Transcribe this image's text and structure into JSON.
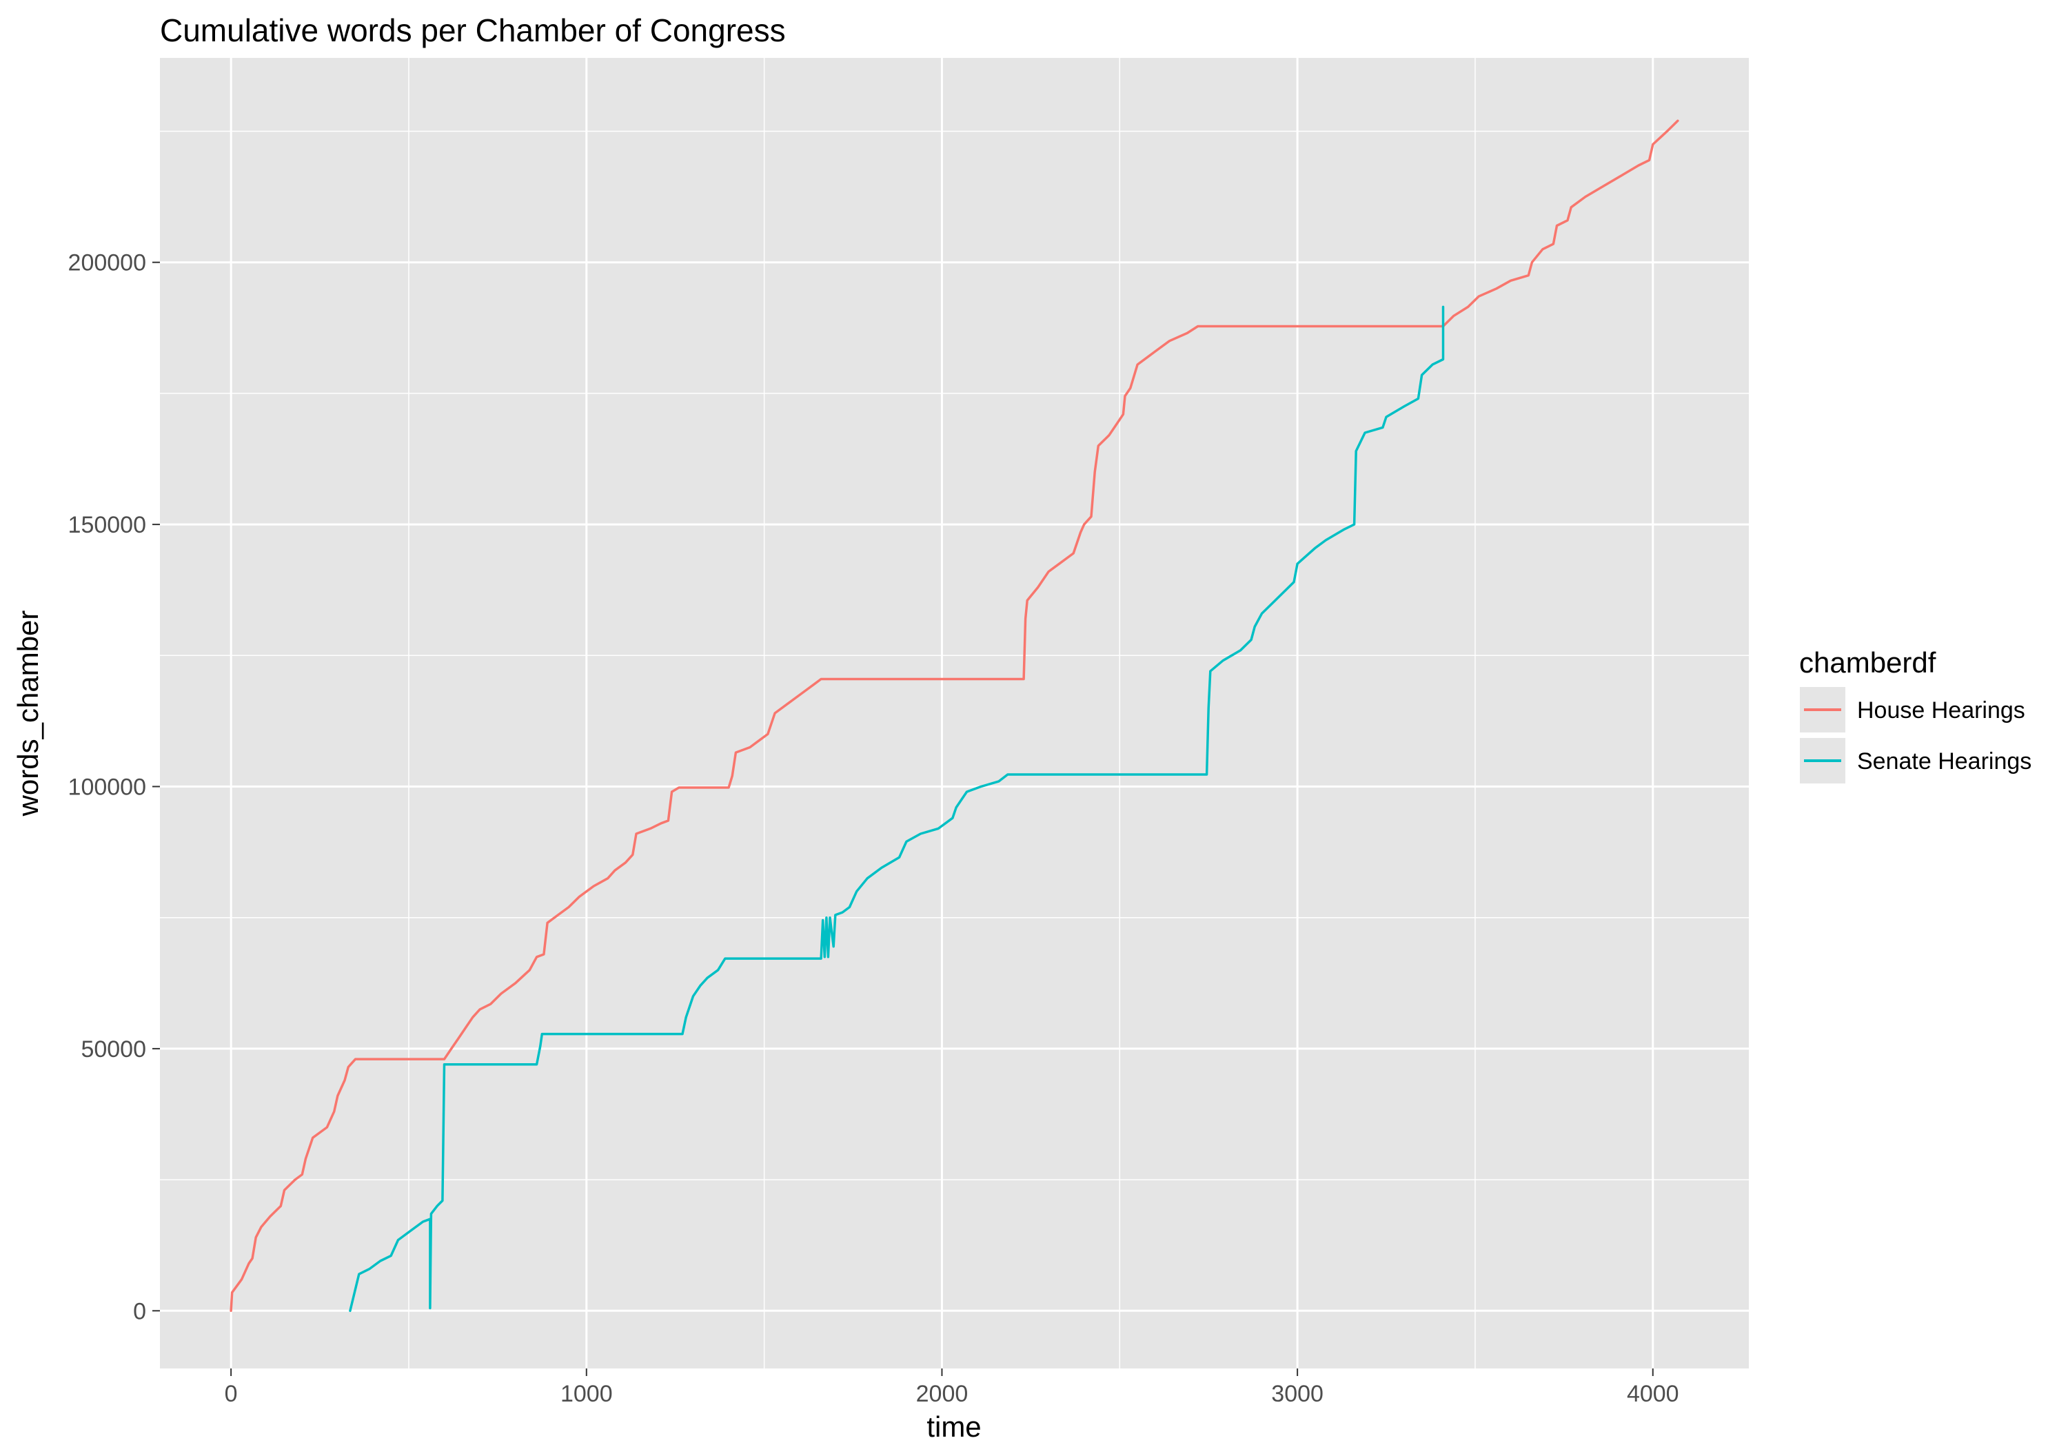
{
  "chart_data": {
    "type": "line",
    "title": "Cumulative words per Chamber of Congress",
    "xlabel": "time",
    "ylabel": "words_chamber",
    "xlim": [
      -200,
      4270
    ],
    "ylim": [
      -11000,
      239000
    ],
    "x_ticks": [
      0,
      1000,
      2000,
      3000,
      4000
    ],
    "x_tick_labels": [
      "0",
      "1000",
      "2000",
      "3000",
      "4000"
    ],
    "y_ticks": [
      0,
      50000,
      100000,
      150000,
      200000
    ],
    "y_tick_labels": [
      "0",
      "50000",
      "100000",
      "150000",
      "200000"
    ],
    "grid": true,
    "legend": {
      "title": "chamberdf",
      "position": "right"
    },
    "colors": {
      "panel": "#e5e5e5",
      "grid": "#ffffff",
      "house": "#f8766d",
      "senate": "#00bfc4"
    },
    "series": [
      {
        "name": "House Hearings",
        "color": "#f8766d",
        "points": [
          [
            0,
            0
          ],
          [
            3,
            3500
          ],
          [
            30,
            6000
          ],
          [
            50,
            9000
          ],
          [
            60,
            10000
          ],
          [
            70,
            14000
          ],
          [
            85,
            16000
          ],
          [
            110,
            18000
          ],
          [
            140,
            20000
          ],
          [
            150,
            23000
          ],
          [
            180,
            25000
          ],
          [
            200,
            26000
          ],
          [
            210,
            29000
          ],
          [
            230,
            33000
          ],
          [
            250,
            34000
          ],
          [
            270,
            35000
          ],
          [
            290,
            38000
          ],
          [
            300,
            41000
          ],
          [
            320,
            44000
          ],
          [
            330,
            46500
          ],
          [
            350,
            48000
          ],
          [
            600,
            48000
          ],
          [
            620,
            50000
          ],
          [
            640,
            52000
          ],
          [
            660,
            54000
          ],
          [
            680,
            56000
          ],
          [
            700,
            57500
          ],
          [
            730,
            58500
          ],
          [
            760,
            60500
          ],
          [
            800,
            62500
          ],
          [
            840,
            65000
          ],
          [
            860,
            67500
          ],
          [
            880,
            68000
          ],
          [
            890,
            74000
          ],
          [
            920,
            75500
          ],
          [
            950,
            77000
          ],
          [
            980,
            79000
          ],
          [
            1020,
            81000
          ],
          [
            1060,
            82500
          ],
          [
            1080,
            84000
          ],
          [
            1110,
            85500
          ],
          [
            1130,
            87000
          ],
          [
            1140,
            91000
          ],
          [
            1180,
            92000
          ],
          [
            1210,
            93000
          ],
          [
            1230,
            93500
          ],
          [
            1240,
            99000
          ],
          [
            1260,
            99800
          ],
          [
            1400,
            99800
          ],
          [
            1410,
            102000
          ],
          [
            1420,
            106500
          ],
          [
            1460,
            107500
          ],
          [
            1480,
            108500
          ],
          [
            1510,
            110000
          ],
          [
            1530,
            114000
          ],
          [
            1570,
            116000
          ],
          [
            1610,
            118000
          ],
          [
            1640,
            119500
          ],
          [
            1660,
            120500
          ],
          [
            2230,
            120500
          ],
          [
            2235,
            132000
          ],
          [
            2240,
            135500
          ],
          [
            2270,
            138000
          ],
          [
            2300,
            141000
          ],
          [
            2330,
            142500
          ],
          [
            2370,
            144500
          ],
          [
            2390,
            148500
          ],
          [
            2400,
            150000
          ],
          [
            2420,
            151500
          ],
          [
            2430,
            160000
          ],
          [
            2440,
            165000
          ],
          [
            2470,
            167000
          ],
          [
            2490,
            169000
          ],
          [
            2510,
            171000
          ],
          [
            2515,
            174500
          ],
          [
            2530,
            176000
          ],
          [
            2550,
            180500
          ],
          [
            2580,
            182000
          ],
          [
            2600,
            183000
          ],
          [
            2640,
            185000
          ],
          [
            2690,
            186500
          ],
          [
            2720,
            187800
          ],
          [
            3410,
            187800
          ],
          [
            3440,
            189800
          ],
          [
            3480,
            191500
          ],
          [
            3510,
            193500
          ],
          [
            3560,
            195000
          ],
          [
            3600,
            196500
          ],
          [
            3650,
            197500
          ],
          [
            3660,
            200000
          ],
          [
            3690,
            202500
          ],
          [
            3720,
            203500
          ],
          [
            3730,
            207000
          ],
          [
            3760,
            208000
          ],
          [
            3770,
            210500
          ],
          [
            3810,
            212500
          ],
          [
            3860,
            214500
          ],
          [
            3910,
            216500
          ],
          [
            3960,
            218500
          ],
          [
            3990,
            219500
          ],
          [
            4000,
            222500
          ],
          [
            4040,
            225000
          ],
          [
            4070,
            227000
          ]
        ]
      },
      {
        "name": "Senate Hearings",
        "color": "#00bfc4",
        "points": [
          [
            335,
            0
          ],
          [
            360,
            7000
          ],
          [
            390,
            8000
          ],
          [
            420,
            9500
          ],
          [
            450,
            10500
          ],
          [
            470,
            13500
          ],
          [
            510,
            15500
          ],
          [
            540,
            17000
          ],
          [
            560,
            17500
          ],
          [
            560,
            500
          ],
          [
            563,
            18500
          ],
          [
            580,
            20000
          ],
          [
            595,
            21000
          ],
          [
            600,
            47000
          ],
          [
            860,
            47000
          ],
          [
            870,
            50500
          ],
          [
            875,
            52800
          ],
          [
            1270,
            52800
          ],
          [
            1280,
            56000
          ],
          [
            1300,
            60000
          ],
          [
            1320,
            62000
          ],
          [
            1340,
            63500
          ],
          [
            1370,
            65000
          ],
          [
            1390,
            67200
          ],
          [
            1660,
            67200
          ],
          [
            1665,
            74500
          ],
          [
            1670,
            67500
          ],
          [
            1675,
            75000
          ],
          [
            1680,
            67500
          ],
          [
            1685,
            75000
          ],
          [
            1695,
            69500
          ],
          [
            1700,
            75500
          ],
          [
            1720,
            76000
          ],
          [
            1740,
            77000
          ],
          [
            1760,
            80000
          ],
          [
            1790,
            82500
          ],
          [
            1830,
            84500
          ],
          [
            1880,
            86500
          ],
          [
            1900,
            89500
          ],
          [
            1940,
            91000
          ],
          [
            1990,
            92000
          ],
          [
            2030,
            94000
          ],
          [
            2040,
            96000
          ],
          [
            2070,
            99000
          ],
          [
            2110,
            100000
          ],
          [
            2160,
            101000
          ],
          [
            2185,
            102300
          ],
          [
            2745,
            102300
          ],
          [
            2750,
            115000
          ],
          [
            2755,
            122000
          ],
          [
            2790,
            124000
          ],
          [
            2840,
            126000
          ],
          [
            2870,
            128000
          ],
          [
            2880,
            130500
          ],
          [
            2900,
            133000
          ],
          [
            2930,
            135000
          ],
          [
            2960,
            137000
          ],
          [
            2990,
            139000
          ],
          [
            3000,
            142500
          ],
          [
            3050,
            145500
          ],
          [
            3080,
            147000
          ],
          [
            3130,
            149000
          ],
          [
            3160,
            150000
          ],
          [
            3165,
            164000
          ],
          [
            3190,
            167500
          ],
          [
            3240,
            168500
          ],
          [
            3250,
            170500
          ],
          [
            3300,
            172500
          ],
          [
            3340,
            174000
          ],
          [
            3350,
            178500
          ],
          [
            3380,
            180500
          ],
          [
            3410,
            181500
          ],
          [
            3410,
            191500
          ]
        ]
      }
    ]
  }
}
